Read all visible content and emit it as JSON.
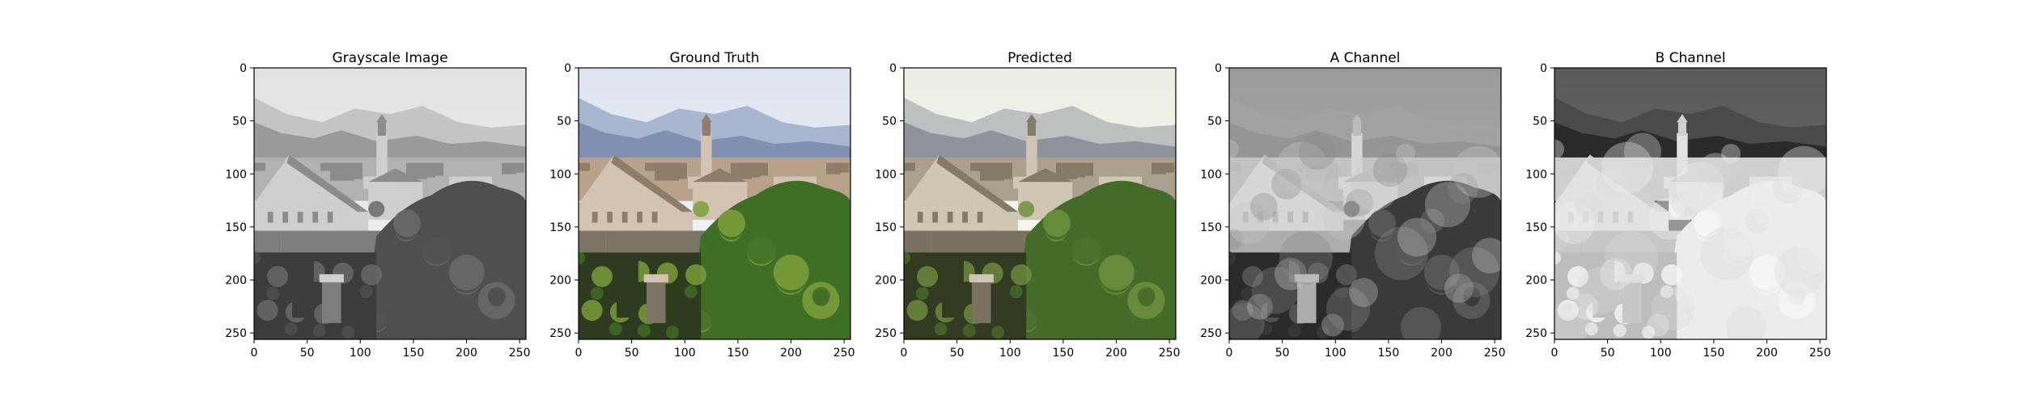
{
  "figure": {
    "panels": [
      {
        "id": "gray",
        "title": "Grayscale Image",
        "mode": "gray"
      },
      {
        "id": "truth",
        "title": "Ground Truth",
        "mode": "truth"
      },
      {
        "id": "pred",
        "title": "Predicted",
        "mode": "pred"
      },
      {
        "id": "achan",
        "title": "A Channel",
        "mode": "achannel"
      },
      {
        "id": "bchan",
        "title": "B Channel",
        "mode": "bchannel"
      }
    ],
    "x_ticks": [
      "0",
      "50",
      "100",
      "150",
      "200",
      "250"
    ],
    "y_ticks": [
      "0",
      "50",
      "100",
      "150",
      "200",
      "250"
    ],
    "x_tick_values": [
      0,
      50,
      100,
      150,
      200,
      250
    ],
    "y_tick_values": [
      0,
      50,
      100,
      150,
      200,
      250
    ],
    "axis_range": [
      0,
      256
    ]
  }
}
